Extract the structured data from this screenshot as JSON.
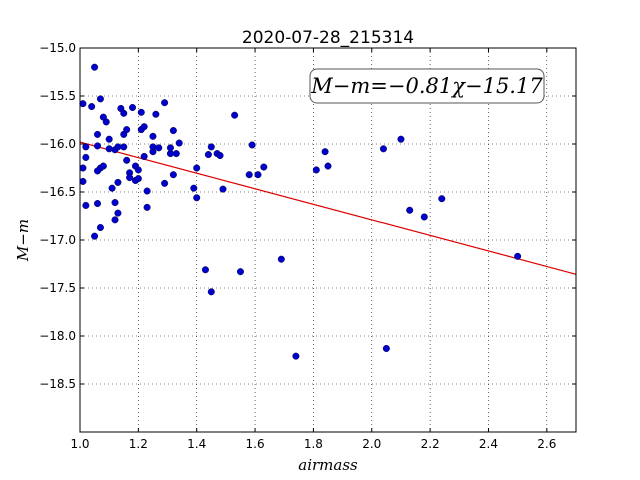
{
  "chart_data": {
    "type": "scatter",
    "title": "2020-07-28_215314",
    "xlabel": "airmass",
    "ylabel": "M−m",
    "xlim": [
      1.0,
      2.7
    ],
    "ylim": [
      -19.0,
      -15.0
    ],
    "y_inverted": true,
    "grid": true,
    "grid_style": "dotted",
    "marker_color": "#0000cc",
    "fit_color": "#dd0000",
    "x_ticks": [
      1.0,
      1.2,
      1.4,
      1.6,
      1.8,
      2.0,
      2.2,
      2.4,
      2.6
    ],
    "x_tick_labels": [
      "1.0",
      "1.2",
      "1.4",
      "1.6",
      "1.8",
      "2.0",
      "2.2",
      "2.4",
      "2.6"
    ],
    "y_ticks": [
      -15.0,
      -15.5,
      -16.0,
      -16.5,
      -17.0,
      -17.5,
      -18.0,
      -18.5
    ],
    "y_tick_labels": [
      "−15.0",
      "−15.5",
      "−16.0",
      "−16.5",
      "−17.0",
      "−17.5",
      "−18.0",
      "−18.5"
    ],
    "annotation": "M−m=−0.81χ−15.17",
    "annotation_position": "top-right",
    "fit": {
      "slope": -0.81,
      "intercept": -15.17,
      "x_range": [
        1.0,
        2.7
      ]
    },
    "points": [
      [
        1.01,
        -15.58
      ],
      [
        1.04,
        -15.61
      ],
      [
        1.05,
        -15.2
      ],
      [
        1.07,
        -15.53
      ],
      [
        1.08,
        -15.72
      ],
      [
        1.09,
        -15.77
      ],
      [
        1.02,
        -16.03
      ],
      [
        1.02,
        -16.14
      ],
      [
        1.01,
        -16.25
      ],
      [
        1.01,
        -16.39
      ],
      [
        1.02,
        -16.64
      ],
      [
        1.05,
        -16.96
      ],
      [
        1.06,
        -16.62
      ],
      [
        1.07,
        -16.87
      ],
      [
        1.06,
        -15.9
      ],
      [
        1.06,
        -16.02
      ],
      [
        1.07,
        -16.25
      ],
      [
        1.06,
        -16.28
      ],
      [
        1.08,
        -16.23
      ],
      [
        1.1,
        -16.05
      ],
      [
        1.1,
        -15.95
      ],
      [
        1.11,
        -16.46
      ],
      [
        1.12,
        -16.79
      ],
      [
        1.12,
        -16.61
      ],
      [
        1.13,
        -16.72
      ],
      [
        1.13,
        -16.4
      ],
      [
        1.12,
        -16.06
      ],
      [
        1.13,
        -16.03
      ],
      [
        1.14,
        -15.63
      ],
      [
        1.15,
        -15.68
      ],
      [
        1.15,
        -15.9
      ],
      [
        1.16,
        -15.85
      ],
      [
        1.15,
        -16.03
      ],
      [
        1.16,
        -16.17
      ],
      [
        1.17,
        -16.3
      ],
      [
        1.17,
        -16.35
      ],
      [
        1.18,
        -15.62
      ],
      [
        1.19,
        -16.23
      ],
      [
        1.19,
        -16.38
      ],
      [
        1.2,
        -16.27
      ],
      [
        1.2,
        -16.36
      ],
      [
        1.21,
        -15.67
      ],
      [
        1.21,
        -15.85
      ],
      [
        1.22,
        -15.82
      ],
      [
        1.22,
        -16.13
      ],
      [
        1.23,
        -16.49
      ],
      [
        1.23,
        -16.66
      ],
      [
        1.25,
        -16.08
      ],
      [
        1.25,
        -16.03
      ],
      [
        1.25,
        -15.92
      ],
      [
        1.26,
        -15.69
      ],
      [
        1.27,
        -16.04
      ],
      [
        1.29,
        -15.57
      ],
      [
        1.29,
        -16.41
      ],
      [
        1.31,
        -16.1
      ],
      [
        1.31,
        -16.04
      ],
      [
        1.32,
        -15.86
      ],
      [
        1.32,
        -16.32
      ],
      [
        1.33,
        -16.1
      ],
      [
        1.34,
        -15.99
      ],
      [
        1.39,
        -16.46
      ],
      [
        1.4,
        -16.56
      ],
      [
        1.4,
        -16.25
      ],
      [
        1.43,
        -17.31
      ],
      [
        1.44,
        -16.11
      ],
      [
        1.45,
        -16.03
      ],
      [
        1.45,
        -17.54
      ],
      [
        1.47,
        -16.1
      ],
      [
        1.48,
        -16.12
      ],
      [
        1.49,
        -16.47
      ],
      [
        1.53,
        -15.7
      ],
      [
        1.55,
        -17.33
      ],
      [
        1.58,
        -16.32
      ],
      [
        1.59,
        -16.01
      ],
      [
        1.61,
        -16.32
      ],
      [
        1.63,
        -16.24
      ],
      [
        1.69,
        -17.2
      ],
      [
        1.74,
        -18.21
      ],
      [
        1.81,
        -16.27
      ],
      [
        1.84,
        -16.08
      ],
      [
        1.85,
        -16.23
      ],
      [
        2.04,
        -16.05
      ],
      [
        2.05,
        -18.13
      ],
      [
        2.1,
        -15.95
      ],
      [
        2.13,
        -16.69
      ],
      [
        2.18,
        -16.76
      ],
      [
        2.24,
        -16.57
      ],
      [
        2.5,
        -17.17
      ]
    ]
  }
}
